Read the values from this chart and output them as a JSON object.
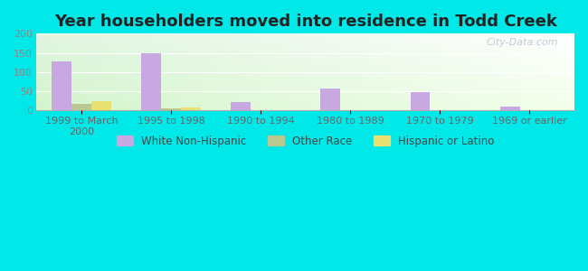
{
  "title": "Year householders moved into residence in Todd Creek",
  "categories": [
    "1999 to March\n2000",
    "1995 to 1998",
    "1990 to 1994",
    "1980 to 1989",
    "1970 to 1979",
    "1969 or earlier"
  ],
  "white_non_hispanic": [
    127,
    148,
    23,
    57,
    48,
    10
  ],
  "other_race": [
    18,
    6,
    0,
    0,
    0,
    0
  ],
  "hispanic_or_latino": [
    24,
    7,
    0,
    0,
    0,
    0
  ],
  "white_color": "#c8a8e0",
  "other_color": "#b8c890",
  "hispanic_color": "#e8e070",
  "ylim": [
    0,
    200
  ],
  "yticks": [
    0,
    50,
    100,
    150,
    200
  ],
  "bg_outer": "#00e8e8",
  "watermark": "City-Data.com",
  "legend_labels": [
    "White Non-Hispanic",
    "Other Race",
    "Hispanic or Latino"
  ],
  "bar_width": 0.22,
  "title_fontsize": 13,
  "tick_fontsize": 8
}
